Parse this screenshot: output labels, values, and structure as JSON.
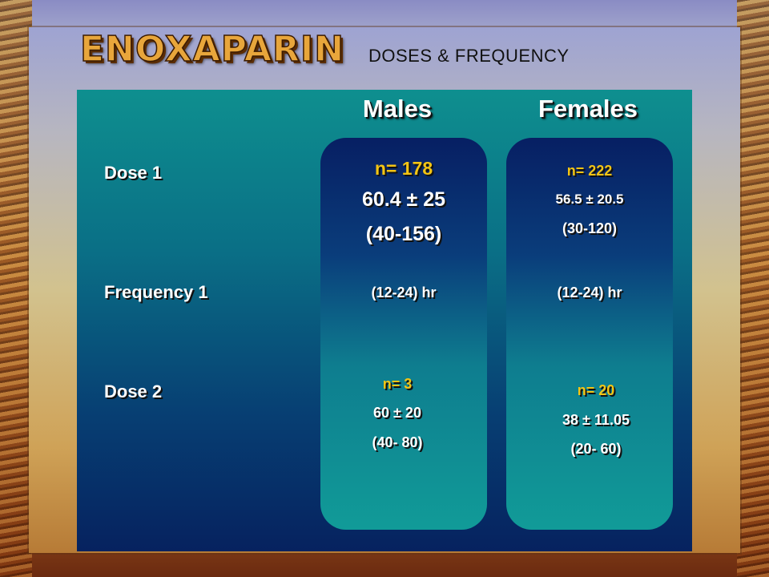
{
  "title": "ENOXAPARIN",
  "subtitle": "DOSES  &  FREQUENCY",
  "columns": {
    "males": "Males",
    "females": "Females"
  },
  "rows": {
    "dose1": "Dose 1",
    "frequency1": "Frequency 1",
    "dose2": "Dose 2"
  },
  "males": {
    "dose1": {
      "n": "n= 178",
      "mean": "60.4 ± 25",
      "range": "(40-156)"
    },
    "frequency1": "(12-24) hr",
    "dose2": {
      "n": "n= 3",
      "mean": "60 ± 20",
      "range": "(40- 80)"
    }
  },
  "females": {
    "dose1": {
      "n": "n= 222",
      "mean": "56.5 ± 20.5",
      "range": "(30-120)"
    },
    "frequency1": "(12-24) hr",
    "dose2": {
      "n": "n= 20",
      "mean": "38 ± 11.05",
      "range": "(20- 60)"
    }
  },
  "colors": {
    "highlight": "#f3c414",
    "panel_top": "#0e8f8f",
    "panel_bottom": "#06225f"
  }
}
